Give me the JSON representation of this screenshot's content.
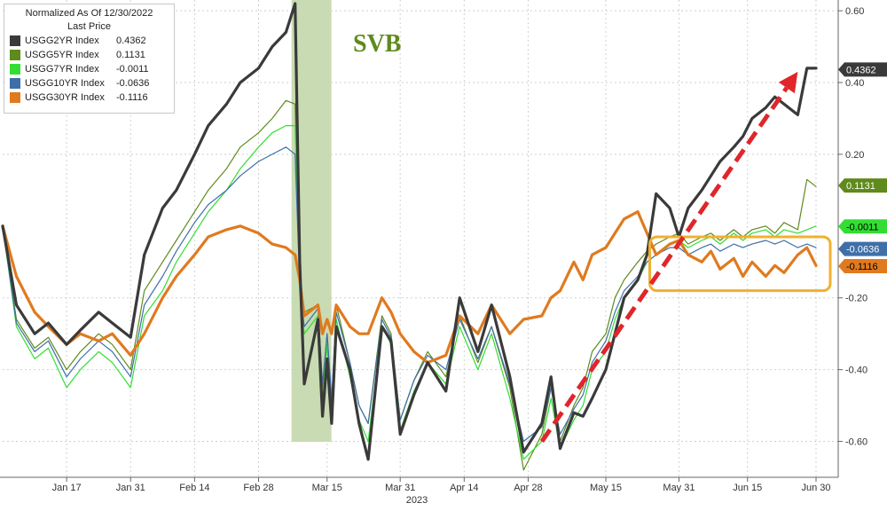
{
  "chart_data": {
    "type": "line",
    "legend": {
      "title": "Normalized As Of 12/30/2022",
      "subtitle": "Last Price",
      "placement": "top-left"
    },
    "xlabel": "2023",
    "x_ticks": [
      "Jan 17",
      "Jan 31",
      "Feb 14",
      "Feb 28",
      "Mar 15",
      "Mar 31",
      "Apr 14",
      "Apr 28",
      "May 15",
      "May 31",
      "Jun 15",
      "Jun 30"
    ],
    "y_ticks": [
      "0.60",
      "0.40",
      "0.20",
      "-0.20",
      "-0.40",
      "-0.60"
    ],
    "ylim": [
      -0.7,
      0.63
    ],
    "grid": true,
    "annotations": {
      "svb_label": "SVB",
      "svb_band": {
        "start": "Mar 8",
        "end": "Mar 14"
      },
      "trend_arrow": {
        "from": [
          "May 1",
          -0.6
        ],
        "to": [
          "Jun 26",
          0.43
        ]
      },
      "range_box": {
        "from": "May 25",
        "to": "Jun 30",
        "y_top": -0.03,
        "y_bottom": -0.18
      }
    },
    "series": [
      {
        "name": "USGG2YR Index",
        "last": "0.4362",
        "label": "0.4362",
        "color": "#3a3a3a",
        "x": [
          "Jan 3",
          "Jan 6",
          "Jan 10",
          "Jan 13",
          "Jan 17",
          "Jan 20",
          "Jan 24",
          "Jan 27",
          "Jan 31",
          "Feb 3",
          "Feb 7",
          "Feb 10",
          "Feb 14",
          "Feb 17",
          "Feb 21",
          "Feb 24",
          "Feb 28",
          "Mar 3",
          "Mar 6",
          "Mar 8",
          "Mar 9",
          "Mar 10",
          "Mar 13",
          "Mar 14",
          "Mar 15",
          "Mar 16",
          "Mar 17",
          "Mar 20",
          "Mar 22",
          "Mar 24",
          "Mar 27",
          "Mar 29",
          "Mar 31",
          "Apr 3",
          "Apr 6",
          "Apr 10",
          "Apr 13",
          "Apr 17",
          "Apr 20",
          "Apr 24",
          "Apr 27",
          "May 1",
          "May 3",
          "May 5",
          "May 8",
          "May 10",
          "May 12",
          "May 15",
          "May 17",
          "May 19",
          "May 22",
          "May 24",
          "May 26",
          "May 29",
          "May 31",
          "Jun 2",
          "Jun 5",
          "Jun 7",
          "Jun 9",
          "Jun 12",
          "Jun 14",
          "Jun 16",
          "Jun 19",
          "Jun 21",
          "Jun 23",
          "Jun 26",
          "Jun 28",
          "Jun 30"
        ],
        "values": [
          0.0,
          -0.22,
          -0.3,
          -0.27,
          -0.33,
          -0.29,
          -0.24,
          -0.27,
          -0.31,
          -0.08,
          0.05,
          0.1,
          0.2,
          0.28,
          0.34,
          0.4,
          0.44,
          0.5,
          0.54,
          0.62,
          -0.1,
          -0.44,
          -0.26,
          -0.53,
          -0.37,
          -0.55,
          -0.28,
          -0.4,
          -0.55,
          -0.65,
          -0.28,
          -0.32,
          -0.58,
          -0.47,
          -0.38,
          -0.46,
          -0.2,
          -0.35,
          -0.22,
          -0.42,
          -0.63,
          -0.55,
          -0.42,
          -0.62,
          -0.52,
          -0.53,
          -0.48,
          -0.4,
          -0.3,
          -0.2,
          -0.15,
          -0.08,
          0.09,
          0.05,
          -0.03,
          0.05,
          0.1,
          0.14,
          0.18,
          0.22,
          0.25,
          0.3,
          0.33,
          0.36,
          0.34,
          0.31,
          0.44,
          0.44
        ]
      },
      {
        "name": "USGG5YR Index",
        "last": "0.1131",
        "label": "0.1131",
        "color": "#5f8a1c",
        "x": [
          "Jan 3",
          "Jan 6",
          "Jan 10",
          "Jan 13",
          "Jan 17",
          "Jan 20",
          "Jan 24",
          "Jan 27",
          "Jan 31",
          "Feb 3",
          "Feb 7",
          "Feb 10",
          "Feb 14",
          "Feb 17",
          "Feb 21",
          "Feb 24",
          "Feb 28",
          "Mar 3",
          "Mar 6",
          "Mar 8",
          "Mar 9",
          "Mar 10",
          "Mar 13",
          "Mar 14",
          "Mar 15",
          "Mar 16",
          "Mar 17",
          "Mar 20",
          "Mar 22",
          "Mar 24",
          "Mar 27",
          "Mar 29",
          "Mar 31",
          "Apr 3",
          "Apr 6",
          "Apr 10",
          "Apr 13",
          "Apr 17",
          "Apr 20",
          "Apr 24",
          "Apr 27",
          "May 1",
          "May 3",
          "May 5",
          "May 8",
          "May 10",
          "May 12",
          "May 15",
          "May 17",
          "May 19",
          "May 22",
          "May 24",
          "May 26",
          "May 29",
          "May 31",
          "Jun 2",
          "Jun 5",
          "Jun 7",
          "Jun 9",
          "Jun 12",
          "Jun 14",
          "Jun 16",
          "Jun 19",
          "Jun 21",
          "Jun 23",
          "Jun 26",
          "Jun 28",
          "Jun 30"
        ],
        "values": [
          0.0,
          -0.26,
          -0.34,
          -0.31,
          -0.4,
          -0.35,
          -0.3,
          -0.33,
          -0.4,
          -0.18,
          -0.1,
          -0.04,
          0.04,
          0.1,
          0.16,
          0.22,
          0.26,
          0.3,
          0.35,
          0.34,
          -0.15,
          -0.24,
          -0.22,
          -0.45,
          -0.3,
          -0.5,
          -0.22,
          -0.38,
          -0.5,
          -0.55,
          -0.25,
          -0.3,
          -0.54,
          -0.43,
          -0.35,
          -0.42,
          -0.25,
          -0.38,
          -0.28,
          -0.45,
          -0.68,
          -0.58,
          -0.45,
          -0.6,
          -0.5,
          -0.45,
          -0.35,
          -0.3,
          -0.2,
          -0.15,
          -0.1,
          -0.07,
          -0.05,
          -0.03,
          -0.02,
          -0.05,
          -0.03,
          -0.02,
          -0.04,
          -0.01,
          -0.03,
          -0.01,
          0.0,
          -0.02,
          0.01,
          -0.01,
          0.13,
          0.11
        ]
      },
      {
        "name": "USGG7YR Index",
        "last": "-0.0011",
        "label": "-0.0011",
        "color": "#33dd33",
        "x": [
          "Jan 3",
          "Jan 6",
          "Jan 10",
          "Jan 13",
          "Jan 17",
          "Jan 20",
          "Jan 24",
          "Jan 27",
          "Jan 31",
          "Feb 3",
          "Feb 7",
          "Feb 10",
          "Feb 14",
          "Feb 17",
          "Feb 21",
          "Feb 24",
          "Feb 28",
          "Mar 3",
          "Mar 6",
          "Mar 8",
          "Mar 9",
          "Mar 10",
          "Mar 13",
          "Mar 14",
          "Mar 15",
          "Mar 16",
          "Mar 17",
          "Mar 20",
          "Mar 22",
          "Mar 24",
          "Mar 27",
          "Mar 29",
          "Mar 31",
          "Apr 3",
          "Apr 6",
          "Apr 10",
          "Apr 13",
          "Apr 17",
          "Apr 20",
          "Apr 24",
          "Apr 27",
          "May 1",
          "May 3",
          "May 5",
          "May 8",
          "May 10",
          "May 12",
          "May 15",
          "May 17",
          "May 19",
          "May 22",
          "May 24",
          "May 26",
          "May 29",
          "May 31",
          "Jun 2",
          "Jun 5",
          "Jun 7",
          "Jun 9",
          "Jun 12",
          "Jun 14",
          "Jun 16",
          "Jun 19",
          "Jun 21",
          "Jun 23",
          "Jun 26",
          "Jun 28",
          "Jun 30"
        ],
        "values": [
          0.0,
          -0.28,
          -0.37,
          -0.34,
          -0.45,
          -0.4,
          -0.35,
          -0.38,
          -0.45,
          -0.25,
          -0.18,
          -0.1,
          -0.02,
          0.04,
          0.1,
          0.16,
          0.22,
          0.26,
          0.28,
          0.28,
          -0.18,
          -0.3,
          -0.25,
          -0.48,
          -0.33,
          -0.52,
          -0.26,
          -0.42,
          -0.54,
          -0.6,
          -0.28,
          -0.33,
          -0.57,
          -0.46,
          -0.38,
          -0.44,
          -0.28,
          -0.4,
          -0.3,
          -0.48,
          -0.65,
          -0.6,
          -0.48,
          -0.62,
          -0.54,
          -0.5,
          -0.4,
          -0.35,
          -0.26,
          -0.2,
          -0.15,
          -0.1,
          -0.08,
          -0.05,
          -0.04,
          -0.06,
          -0.04,
          -0.03,
          -0.05,
          -0.02,
          -0.04,
          -0.02,
          -0.01,
          -0.03,
          -0.01,
          -0.02,
          -0.01,
          0.0
        ]
      },
      {
        "name": "USGG10YR Index",
        "last": "-0.0636",
        "label": "-0.0636",
        "color": "#3e6fa8",
        "x": [
          "Jan 3",
          "Jan 6",
          "Jan 10",
          "Jan 13",
          "Jan 17",
          "Jan 20",
          "Jan 24",
          "Jan 27",
          "Jan 31",
          "Feb 3",
          "Feb 7",
          "Feb 10",
          "Feb 14",
          "Feb 17",
          "Feb 21",
          "Feb 24",
          "Feb 28",
          "Mar 3",
          "Mar 6",
          "Mar 8",
          "Mar 9",
          "Mar 10",
          "Mar 13",
          "Mar 14",
          "Mar 15",
          "Mar 16",
          "Mar 17",
          "Mar 20",
          "Mar 22",
          "Mar 24",
          "Mar 27",
          "Mar 29",
          "Mar 31",
          "Apr 3",
          "Apr 6",
          "Apr 10",
          "Apr 13",
          "Apr 17",
          "Apr 20",
          "Apr 24",
          "Apr 27",
          "May 1",
          "May 3",
          "May 5",
          "May 8",
          "May 10",
          "May 12",
          "May 15",
          "May 17",
          "May 19",
          "May 22",
          "May 24",
          "May 26",
          "May 29",
          "May 31",
          "Jun 2",
          "Jun 5",
          "Jun 7",
          "Jun 9",
          "Jun 12",
          "Jun 14",
          "Jun 16",
          "Jun 19",
          "Jun 21",
          "Jun 23",
          "Jun 26",
          "Jun 28",
          "Jun 30"
        ],
        "values": [
          0.0,
          -0.27,
          -0.35,
          -0.32,
          -0.42,
          -0.37,
          -0.32,
          -0.35,
          -0.42,
          -0.22,
          -0.14,
          -0.07,
          0.01,
          0.06,
          0.1,
          0.14,
          0.18,
          0.2,
          0.22,
          0.2,
          -0.16,
          -0.28,
          -0.23,
          -0.44,
          -0.3,
          -0.48,
          -0.24,
          -0.38,
          -0.5,
          -0.55,
          -0.26,
          -0.31,
          -0.54,
          -0.43,
          -0.36,
          -0.4,
          -0.26,
          -0.37,
          -0.28,
          -0.44,
          -0.6,
          -0.56,
          -0.45,
          -0.58,
          -0.51,
          -0.47,
          -0.38,
          -0.32,
          -0.24,
          -0.18,
          -0.14,
          -0.1,
          -0.08,
          -0.06,
          -0.06,
          -0.08,
          -0.06,
          -0.05,
          -0.07,
          -0.05,
          -0.06,
          -0.05,
          -0.04,
          -0.05,
          -0.04,
          -0.06,
          -0.05,
          -0.06
        ]
      },
      {
        "name": "USGG30YR Index",
        "last": "-0.1116",
        "label": "-0.1116",
        "color": "#e07a1f",
        "x": [
          "Jan 3",
          "Jan 6",
          "Jan 10",
          "Jan 13",
          "Jan 17",
          "Jan 20",
          "Jan 24",
          "Jan 27",
          "Jan 31",
          "Feb 3",
          "Feb 7",
          "Feb 10",
          "Feb 14",
          "Feb 17",
          "Feb 21",
          "Feb 24",
          "Feb 28",
          "Mar 3",
          "Mar 6",
          "Mar 8",
          "Mar 9",
          "Mar 10",
          "Mar 13",
          "Mar 14",
          "Mar 15",
          "Mar 16",
          "Mar 17",
          "Mar 20",
          "Mar 22",
          "Mar 24",
          "Mar 27",
          "Mar 29",
          "Mar 31",
          "Apr 3",
          "Apr 6",
          "Apr 10",
          "Apr 13",
          "Apr 17",
          "Apr 20",
          "Apr 24",
          "Apr 27",
          "May 1",
          "May 3",
          "May 5",
          "May 8",
          "May 10",
          "May 12",
          "May 15",
          "May 17",
          "May 19",
          "May 22",
          "May 24",
          "May 26",
          "May 29",
          "May 31",
          "Jun 2",
          "Jun 5",
          "Jun 7",
          "Jun 9",
          "Jun 12",
          "Jun 14",
          "Jun 16",
          "Jun 19",
          "Jun 21",
          "Jun 23",
          "Jun 26",
          "Jun 28",
          "Jun 30"
        ],
        "values": [
          0.0,
          -0.14,
          -0.24,
          -0.28,
          -0.33,
          -0.3,
          -0.32,
          -0.3,
          -0.36,
          -0.3,
          -0.2,
          -0.14,
          -0.08,
          -0.03,
          -0.01,
          0.0,
          -0.02,
          -0.05,
          -0.06,
          -0.08,
          -0.15,
          -0.25,
          -0.22,
          -0.3,
          -0.26,
          -0.3,
          -0.22,
          -0.28,
          -0.3,
          -0.3,
          -0.2,
          -0.24,
          -0.3,
          -0.35,
          -0.38,
          -0.36,
          -0.25,
          -0.3,
          -0.22,
          -0.3,
          -0.26,
          -0.25,
          -0.2,
          -0.18,
          -0.1,
          -0.15,
          -0.08,
          -0.06,
          -0.02,
          0.02,
          0.04,
          -0.02,
          -0.08,
          -0.05,
          -0.04,
          -0.08,
          -0.1,
          -0.07,
          -0.12,
          -0.09,
          -0.14,
          -0.1,
          -0.14,
          -0.11,
          -0.13,
          -0.08,
          -0.06,
          -0.11
        ]
      }
    ]
  }
}
